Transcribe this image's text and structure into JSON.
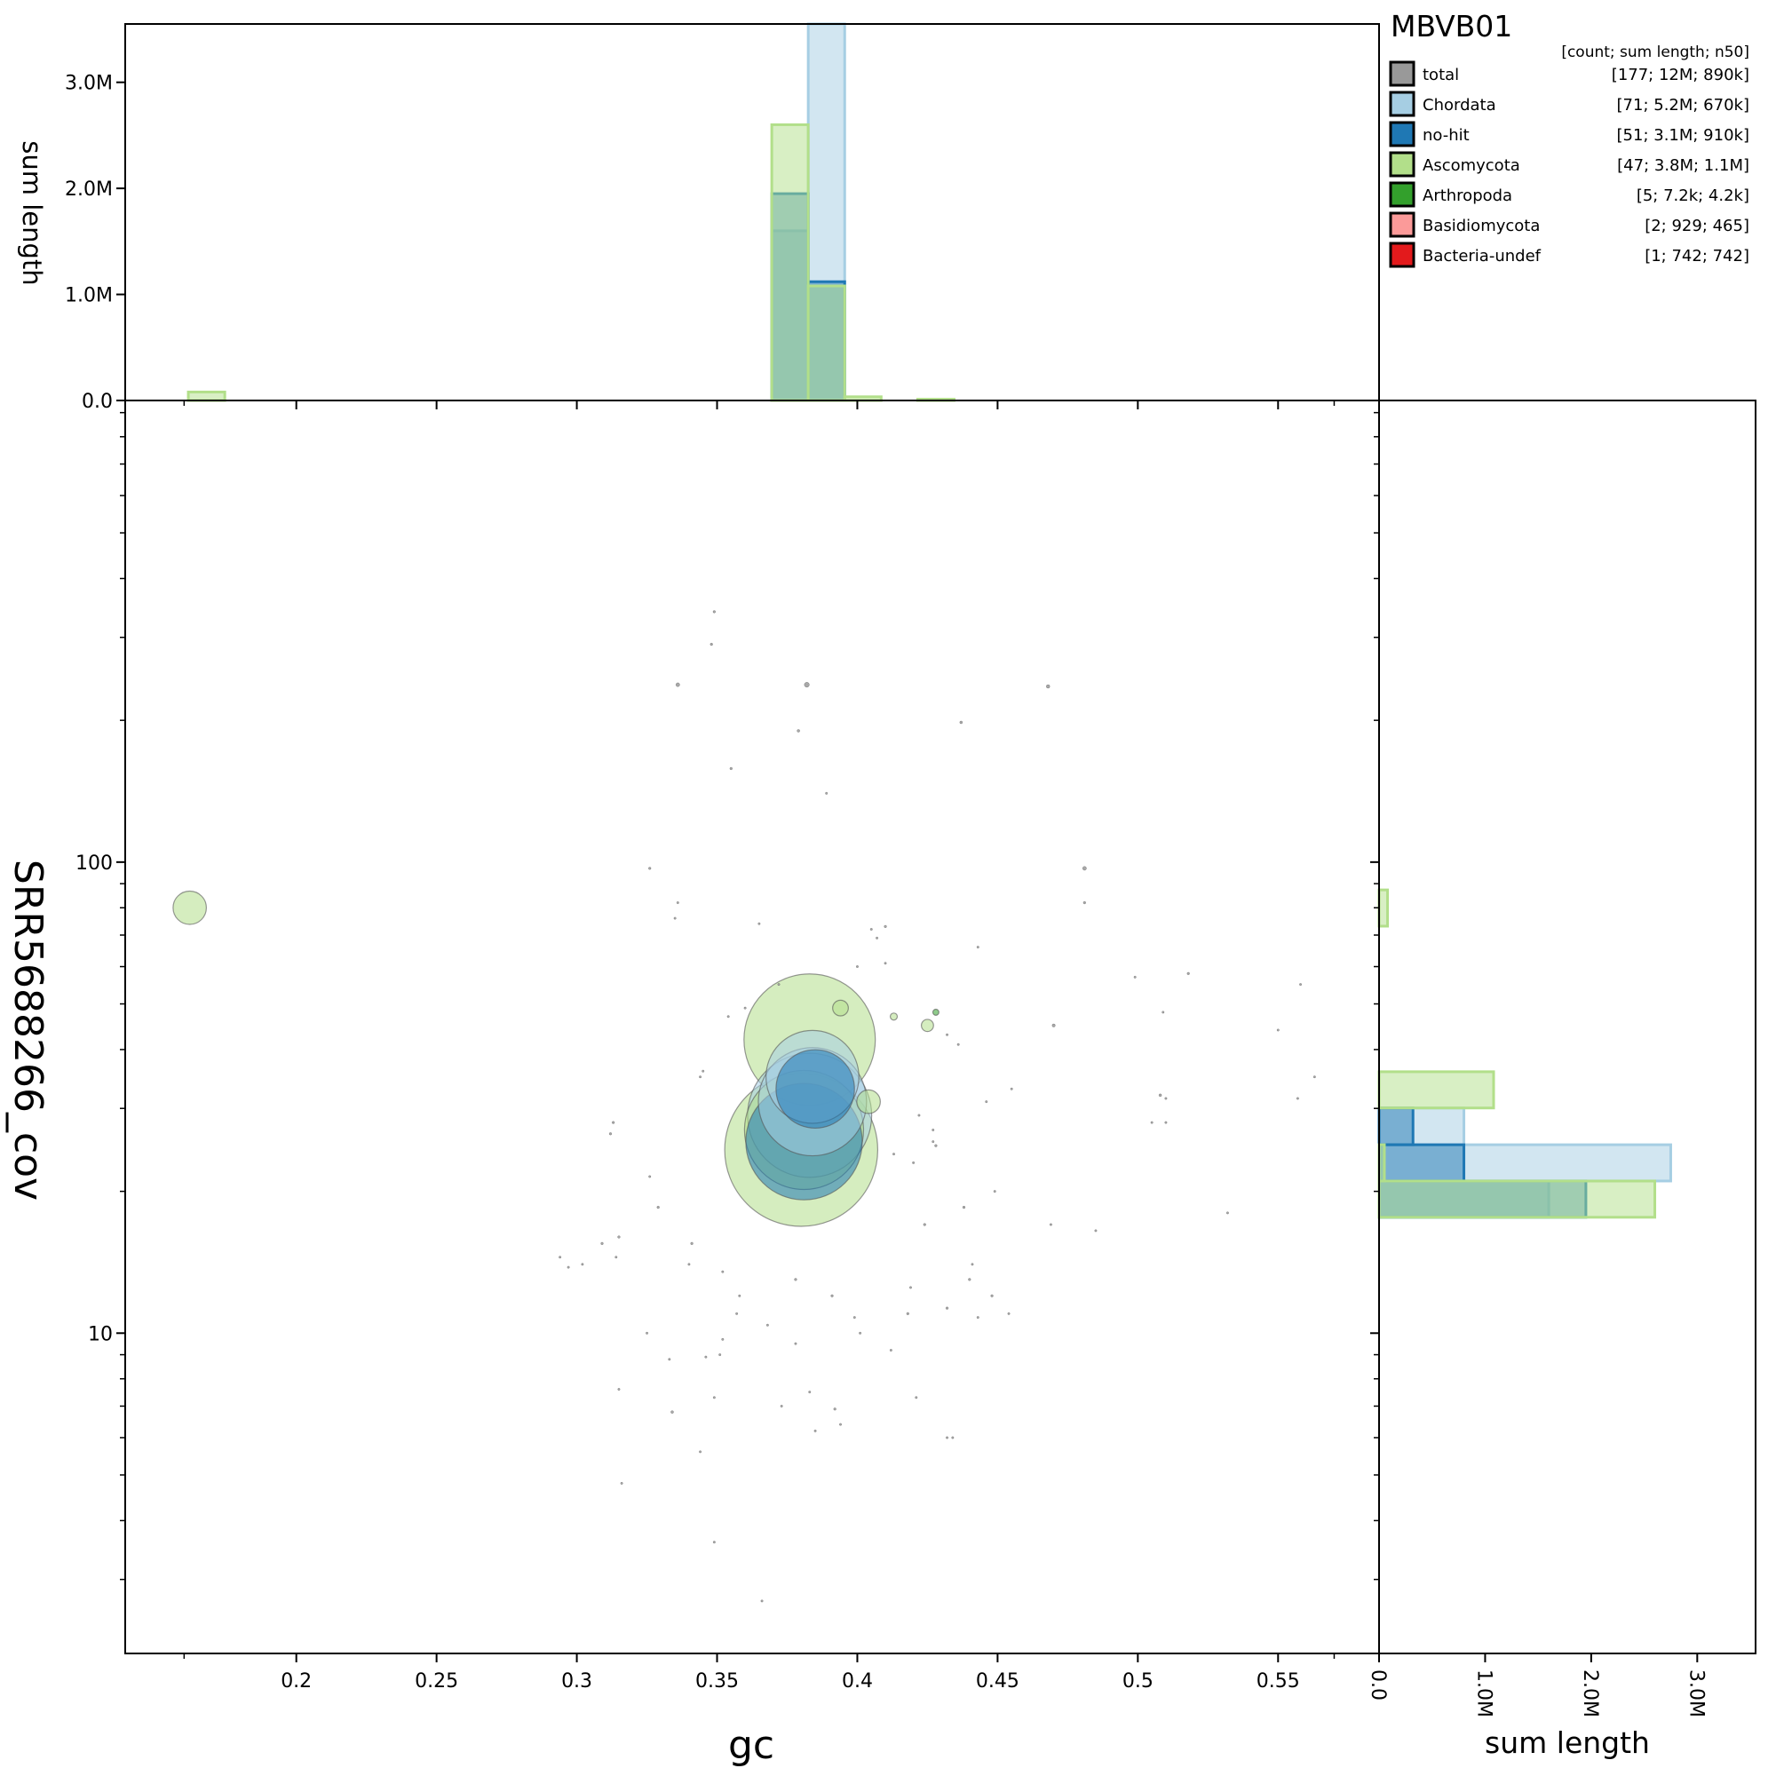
{
  "chart_data": {
    "type": "scatter",
    "title": "MBVB01",
    "xlabel": "gc",
    "ylabel": "SRR5688266_cov",
    "top_hist_ylabel": "sum length",
    "right_hist_xlabel": "sum length",
    "x_ticks": [
      "0.2",
      "0.25",
      "0.3",
      "0.35",
      "0.4",
      "0.45",
      "0.5",
      "0.55"
    ],
    "y_ticks": [
      "10",
      "100"
    ],
    "hist_ticks": [
      "0.0",
      "1.0M",
      "2.0M",
      "3.0M"
    ],
    "xlim": [
      0.139,
      0.586
    ],
    "ylim_log10": [
      0.32,
      2.98
    ],
    "hist_max": 3550000,
    "legend": {
      "header": "[count; sum length; n50]",
      "entries": [
        {
          "name": "total",
          "stats": "[177; 12M; 890k]",
          "color": "#999999"
        },
        {
          "name": "Chordata",
          "stats": "[71; 5.2M; 670k]",
          "color": "#a6cee3"
        },
        {
          "name": "no-hit",
          "stats": "[51; 3.1M; 910k]",
          "color": "#1f78b4"
        },
        {
          "name": "Ascomycota",
          "stats": "[47; 3.8M; 1.1M]",
          "color": "#b2df8a"
        },
        {
          "name": "Arthropoda",
          "stats": "[5; 7.2k; 4.2k]",
          "color": "#33a02c"
        },
        {
          "name": "Basidiomycota",
          "stats": "[2; 929; 465]",
          "color": "#fb9a99"
        },
        {
          "name": "Bacteria-undef",
          "stats": "[1; 742; 742]",
          "color": "#e31a1c"
        }
      ]
    },
    "top_hist": [
      {
        "series": "Chordata",
        "bins": [
          {
            "x0": 0.3825,
            "x1": 0.3955,
            "value": 3600000
          },
          {
            "x0": 0.3695,
            "x1": 0.3825,
            "value": 1600000
          }
        ]
      },
      {
        "series": "no-hit",
        "bins": [
          {
            "x0": 0.3695,
            "x1": 0.3825,
            "value": 1950000
          },
          {
            "x0": 0.3825,
            "x1": 0.3955,
            "value": 1120000
          }
        ]
      },
      {
        "series": "Ascomycota",
        "bins": [
          {
            "x0": 0.1615,
            "x1": 0.1745,
            "value": 80000
          },
          {
            "x0": 0.3695,
            "x1": 0.3825,
            "value": 2600000
          },
          {
            "x0": 0.3825,
            "x1": 0.3955,
            "value": 1080000
          },
          {
            "x0": 0.3955,
            "x1": 0.4085,
            "value": 35000
          },
          {
            "x0": 0.4215,
            "x1": 0.4345,
            "value": 12000
          }
        ]
      }
    ],
    "right_hist": [
      {
        "series": "Chordata",
        "bins": [
          {
            "y0_log": 1.323,
            "y1_log": 1.4,
            "value": 2750000
          },
          {
            "y0_log": 1.4,
            "y1_log": 1.478,
            "value": 800000
          },
          {
            "y0_log": 1.246,
            "y1_log": 1.323,
            "value": 1600000
          }
        ]
      },
      {
        "series": "no-hit",
        "bins": [
          {
            "y0_log": 1.323,
            "y1_log": 1.4,
            "value": 800000
          },
          {
            "y0_log": 1.4,
            "y1_log": 1.478,
            "value": 320000
          },
          {
            "y0_log": 1.246,
            "y1_log": 1.323,
            "value": 1950000
          }
        ]
      },
      {
        "series": "Ascomycota",
        "bins": [
          {
            "y0_log": 1.246,
            "y1_log": 1.323,
            "value": 2600000
          },
          {
            "y0_log": 1.478,
            "y1_log": 1.555,
            "value": 1080000
          },
          {
            "y0_log": 1.323,
            "y1_log": 1.4,
            "value": 50000
          },
          {
            "y0_log": 1.864,
            "y1_log": 1.941,
            "value": 80000
          }
        ]
      }
    ],
    "points": [
      {
        "series": "Ascomycota",
        "gc": 0.38,
        "cov": 24.5,
        "length": 1900000
      },
      {
        "series": "no-hit",
        "gc": 0.381,
        "cov": 25.5,
        "length": 1100000
      },
      {
        "series": "Chordata",
        "gc": 0.384,
        "cov": 31,
        "length": 950000
      },
      {
        "series": "Chordata",
        "gc": 0.383,
        "cov": 29,
        "length": 1250000
      },
      {
        "series": "no-hit",
        "gc": 0.385,
        "cov": 33,
        "length": 500000
      },
      {
        "series": "Chordata",
        "gc": 0.384,
        "cov": 35,
        "length": 700000
      },
      {
        "series": "Ascomycota",
        "gc": 0.383,
        "cov": 42,
        "length": 1400000
      },
      {
        "series": "Ascomycota",
        "gc": 0.381,
        "cov": 27,
        "length": 1150000
      },
      {
        "series": "Ascomycota",
        "gc": 0.162,
        "cov": 80,
        "length": 90000
      },
      {
        "series": "Ascomycota",
        "gc": 0.404,
        "cov": 31,
        "length": 45000
      },
      {
        "series": "Ascomycota",
        "gc": 0.394,
        "cov": 49,
        "length": 20000
      },
      {
        "series": "Ascomycota",
        "gc": 0.425,
        "cov": 45,
        "length": 12000
      },
      {
        "series": "Ascomycota",
        "gc": 0.413,
        "cov": 47,
        "length": 4000
      },
      {
        "series": "Arthropoda",
        "gc": 0.428,
        "cov": 48,
        "length": 3000
      },
      {
        "series": "total",
        "gc": 0.382,
        "cov": 238,
        "length": 2000
      },
      {
        "series": "total",
        "gc": 0.336,
        "cov": 238,
        "length": 1200
      },
      {
        "series": "total",
        "gc": 0.468,
        "cov": 236,
        "length": 1000
      },
      {
        "series": "total",
        "gc": 0.481,
        "cov": 97,
        "length": 1200
      },
      {
        "series": "total",
        "gc": 0.349,
        "cov": 340,
        "length": 500
      },
      {
        "series": "total",
        "gc": 0.348,
        "cov": 290,
        "length": 500
      },
      {
        "series": "total",
        "gc": 0.437,
        "cov": 198,
        "length": 600
      },
      {
        "series": "total",
        "gc": 0.379,
        "cov": 190,
        "length": 600
      },
      {
        "series": "total",
        "gc": 0.355,
        "cov": 158,
        "length": 500
      },
      {
        "series": "total",
        "gc": 0.389,
        "cov": 140,
        "length": 400
      },
      {
        "series": "total",
        "gc": 0.326,
        "cov": 97,
        "length": 500
      },
      {
        "series": "total",
        "gc": 0.481,
        "cov": 82,
        "length": 500
      },
      {
        "series": "total",
        "gc": 0.336,
        "cov": 82,
        "length": 400
      },
      {
        "series": "total",
        "gc": 0.335,
        "cov": 76,
        "length": 400
      },
      {
        "series": "total",
        "gc": 0.365,
        "cov": 74,
        "length": 400
      },
      {
        "series": "total",
        "gc": 0.41,
        "cov": 73,
        "length": 500
      },
      {
        "series": "total",
        "gc": 0.405,
        "cov": 72,
        "length": 400
      },
      {
        "series": "total",
        "gc": 0.407,
        "cov": 69,
        "length": 400
      },
      {
        "series": "total",
        "gc": 0.443,
        "cov": 66,
        "length": 400
      },
      {
        "series": "total",
        "gc": 0.4,
        "cov": 60,
        "length": 400
      },
      {
        "series": "total",
        "gc": 0.41,
        "cov": 61,
        "length": 400
      },
      {
        "series": "total",
        "gc": 0.499,
        "cov": 57,
        "length": 400
      },
      {
        "series": "total",
        "gc": 0.518,
        "cov": 58,
        "length": 500
      },
      {
        "series": "total",
        "gc": 0.558,
        "cov": 55,
        "length": 400
      },
      {
        "series": "total",
        "gc": 0.509,
        "cov": 48,
        "length": 400
      },
      {
        "series": "total",
        "gc": 0.47,
        "cov": 45,
        "length": 800
      },
      {
        "series": "total",
        "gc": 0.432,
        "cov": 43,
        "length": 400
      },
      {
        "series": "total",
        "gc": 0.436,
        "cov": 41,
        "length": 400
      },
      {
        "series": "total",
        "gc": 0.55,
        "cov": 44,
        "length": 400
      },
      {
        "series": "total",
        "gc": 0.354,
        "cov": 47,
        "length": 400
      },
      {
        "series": "total",
        "gc": 0.36,
        "cov": 49,
        "length": 400
      },
      {
        "series": "total",
        "gc": 0.372,
        "cov": 55,
        "length": 400
      },
      {
        "series": "total",
        "gc": 0.345,
        "cov": 36,
        "length": 400
      },
      {
        "series": "total",
        "gc": 0.344,
        "cov": 35,
        "length": 400
      },
      {
        "series": "total",
        "gc": 0.563,
        "cov": 35,
        "length": 400
      },
      {
        "series": "total",
        "gc": 0.508,
        "cov": 32,
        "length": 600
      },
      {
        "series": "total",
        "gc": 0.51,
        "cov": 31.5,
        "length": 400
      },
      {
        "series": "total",
        "gc": 0.557,
        "cov": 31.5,
        "length": 400
      },
      {
        "series": "total",
        "gc": 0.446,
        "cov": 31,
        "length": 400
      },
      {
        "series": "total",
        "gc": 0.455,
        "cov": 33,
        "length": 400
      },
      {
        "series": "total",
        "gc": 0.422,
        "cov": 29,
        "length": 400
      },
      {
        "series": "total",
        "gc": 0.505,
        "cov": 28,
        "length": 400
      },
      {
        "series": "total",
        "gc": 0.51,
        "cov": 28,
        "length": 400
      },
      {
        "series": "total",
        "gc": 0.313,
        "cov": 28,
        "length": 500
      },
      {
        "series": "total",
        "gc": 0.312,
        "cov": 26.5,
        "length": 500
      },
      {
        "series": "total",
        "gc": 0.427,
        "cov": 27,
        "length": 400
      },
      {
        "series": "total",
        "gc": 0.428,
        "cov": 25,
        "length": 500
      },
      {
        "series": "total",
        "gc": 0.427,
        "cov": 25.5,
        "length": 400
      },
      {
        "series": "total",
        "gc": 0.413,
        "cov": 24,
        "length": 400
      },
      {
        "series": "total",
        "gc": 0.42,
        "cov": 23,
        "length": 400
      },
      {
        "series": "total",
        "gc": 0.326,
        "cov": 21.5,
        "length": 400
      },
      {
        "series": "total",
        "gc": 0.329,
        "cov": 18.5,
        "length": 500
      },
      {
        "series": "total",
        "gc": 0.438,
        "cov": 18.5,
        "length": 500
      },
      {
        "series": "total",
        "gc": 0.449,
        "cov": 20,
        "length": 400
      },
      {
        "series": "total",
        "gc": 0.469,
        "cov": 17,
        "length": 400
      },
      {
        "series": "total",
        "gc": 0.424,
        "cov": 17,
        "length": 500
      },
      {
        "series": "total",
        "gc": 0.485,
        "cov": 16.5,
        "length": 400
      },
      {
        "series": "total",
        "gc": 0.532,
        "cov": 18,
        "length": 400
      },
      {
        "series": "total",
        "gc": 0.309,
        "cov": 15.5,
        "length": 500
      },
      {
        "series": "total",
        "gc": 0.315,
        "cov": 16,
        "length": 500
      },
      {
        "series": "total",
        "gc": 0.341,
        "cov": 15.5,
        "length": 500
      },
      {
        "series": "total",
        "gc": 0.314,
        "cov": 14.5,
        "length": 400
      },
      {
        "series": "total",
        "gc": 0.302,
        "cov": 14,
        "length": 400
      },
      {
        "series": "total",
        "gc": 0.294,
        "cov": 14.5,
        "length": 400
      },
      {
        "series": "total",
        "gc": 0.297,
        "cov": 13.8,
        "length": 400
      },
      {
        "series": "total",
        "gc": 0.34,
        "cov": 14,
        "length": 400
      },
      {
        "series": "total",
        "gc": 0.352,
        "cov": 13.5,
        "length": 400
      },
      {
        "series": "total",
        "gc": 0.358,
        "cov": 12,
        "length": 400
      },
      {
        "series": "total",
        "gc": 0.378,
        "cov": 13,
        "length": 500
      },
      {
        "series": "total",
        "gc": 0.391,
        "cov": 12,
        "length": 500
      },
      {
        "series": "total",
        "gc": 0.419,
        "cov": 12.5,
        "length": 400
      },
      {
        "series": "total",
        "gc": 0.441,
        "cov": 14,
        "length": 400
      },
      {
        "series": "total",
        "gc": 0.44,
        "cov": 13,
        "length": 500
      },
      {
        "series": "total",
        "gc": 0.448,
        "cov": 12,
        "length": 500
      },
      {
        "series": "total",
        "gc": 0.399,
        "cov": 10.8,
        "length": 400
      },
      {
        "series": "total",
        "gc": 0.418,
        "cov": 11,
        "length": 500
      },
      {
        "series": "total",
        "gc": 0.432,
        "cov": 11.3,
        "length": 500
      },
      {
        "series": "total",
        "gc": 0.443,
        "cov": 10.8,
        "length": 400
      },
      {
        "series": "total",
        "gc": 0.454,
        "cov": 11,
        "length": 400
      },
      {
        "series": "total",
        "gc": 0.357,
        "cov": 11,
        "length": 400
      },
      {
        "series": "total",
        "gc": 0.368,
        "cov": 10.4,
        "length": 400
      },
      {
        "series": "total",
        "gc": 0.352,
        "cov": 9.7,
        "length": 400
      },
      {
        "series": "total",
        "gc": 0.325,
        "cov": 10,
        "length": 400
      },
      {
        "series": "total",
        "gc": 0.351,
        "cov": 9,
        "length": 400
      },
      {
        "series": "total",
        "gc": 0.378,
        "cov": 9.5,
        "length": 400
      },
      {
        "series": "total",
        "gc": 0.401,
        "cov": 10,
        "length": 400
      },
      {
        "series": "total",
        "gc": 0.412,
        "cov": 9.2,
        "length": 400
      },
      {
        "series": "total",
        "gc": 0.333,
        "cov": 8.8,
        "length": 400
      },
      {
        "series": "total",
        "gc": 0.346,
        "cov": 8.9,
        "length": 400
      },
      {
        "series": "total",
        "gc": 0.315,
        "cov": 7.6,
        "length": 400
      },
      {
        "series": "total",
        "gc": 0.334,
        "cov": 6.8,
        "length": 600
      },
      {
        "series": "total",
        "gc": 0.349,
        "cov": 7.3,
        "length": 400
      },
      {
        "series": "total",
        "gc": 0.373,
        "cov": 7,
        "length": 400
      },
      {
        "series": "total",
        "gc": 0.383,
        "cov": 7.5,
        "length": 400
      },
      {
        "series": "total",
        "gc": 0.392,
        "cov": 6.9,
        "length": 500
      },
      {
        "series": "total",
        "gc": 0.385,
        "cov": 6.2,
        "length": 400
      },
      {
        "series": "total",
        "gc": 0.394,
        "cov": 6.4,
        "length": 400
      },
      {
        "series": "total",
        "gc": 0.432,
        "cov": 6,
        "length": 400
      },
      {
        "series": "total",
        "gc": 0.421,
        "cov": 7.3,
        "length": 400
      },
      {
        "series": "total",
        "gc": 0.434,
        "cov": 6,
        "length": 400
      },
      {
        "series": "total",
        "gc": 0.344,
        "cov": 5.6,
        "length": 400
      },
      {
        "series": "total",
        "gc": 0.316,
        "cov": 4.8,
        "length": 400
      },
      {
        "series": "total",
        "gc": 0.349,
        "cov": 3.6,
        "length": 400
      },
      {
        "series": "total",
        "gc": 0.366,
        "cov": 2.7,
        "length": 400
      }
    ]
  }
}
